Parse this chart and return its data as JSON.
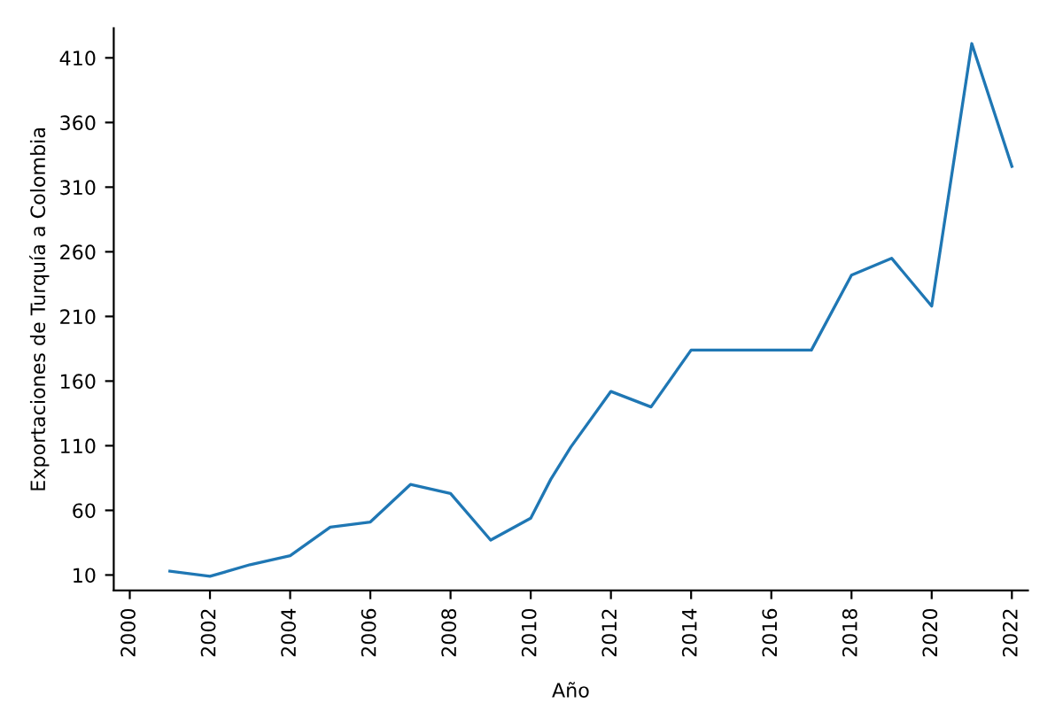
{
  "chart_data": {
    "type": "line",
    "xlabel": "Año",
    "ylabel": "Exportaciones de Turquía a Colombia",
    "x": [
      2001,
      2002,
      2003,
      2004,
      2005,
      2006,
      2007,
      2008,
      2009,
      2010,
      2010.5,
      2011,
      2012,
      2013,
      2014,
      2015,
      2016,
      2017,
      2018,
      2019,
      2020,
      2021,
      2022
    ],
    "series": [
      {
        "color": "#1f77b4",
        "values": [
          13,
          9,
          18,
          25,
          47,
          51,
          80,
          73,
          37,
          54,
          84,
          109,
          152,
          140,
          184,
          184,
          184,
          184,
          242,
          255,
          218,
          421,
          326
        ]
      }
    ],
    "xlim": [
      1999.6,
      2022.4
    ],
    "ylim": [
      -2,
      433
    ],
    "xticks": [
      2000,
      2002,
      2004,
      2006,
      2008,
      2010,
      2012,
      2014,
      2016,
      2018,
      2020,
      2022
    ],
    "yticks": [
      10,
      60,
      110,
      160,
      210,
      260,
      310,
      360,
      410
    ],
    "grid": false,
    "legend": false
  }
}
